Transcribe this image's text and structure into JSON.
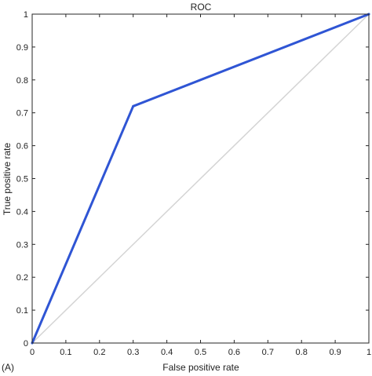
{
  "panel_label": "(A)",
  "chart_data": {
    "type": "line",
    "title": "ROC",
    "xlabel": "False positive rate",
    "ylabel": "True positive rate",
    "xlim": [
      0,
      1
    ],
    "ylim": [
      0,
      1
    ],
    "xticks": [
      0,
      0.1,
      0.2,
      0.3,
      0.4,
      0.5,
      0.6,
      0.7,
      0.8,
      0.9,
      1
    ],
    "xtick_labels": [
      "0",
      "0.1",
      "0.2",
      "0.3",
      "0.4",
      "0.5",
      "0.6",
      "0.7",
      "0.8",
      "0.9",
      "1"
    ],
    "yticks": [
      0,
      0.1,
      0.2,
      0.3,
      0.4,
      0.5,
      0.6,
      0.7,
      0.8,
      0.9,
      1
    ],
    "ytick_labels": [
      "0",
      "0.1",
      "0.2",
      "0.3",
      "0.4",
      "0.5",
      "0.6",
      "0.7",
      "0.8",
      "0.9",
      "1"
    ],
    "grid": false,
    "series": [
      {
        "x": [
          0,
          0.3,
          1
        ],
        "y": [
          0,
          0.72,
          1
        ],
        "color": "#2f55d4"
      },
      {
        "x": [
          0,
          1
        ],
        "y": [
          0,
          1
        ],
        "color": "#d4d4d4"
      }
    ]
  }
}
